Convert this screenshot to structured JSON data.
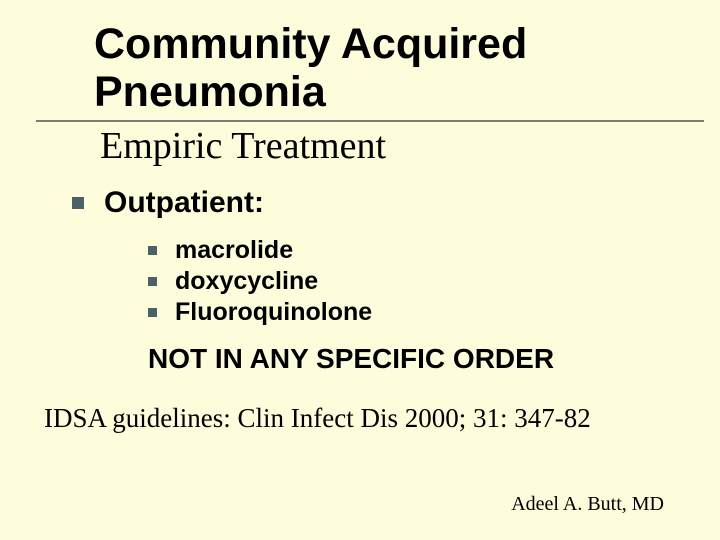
{
  "colors": {
    "background": "#fdfddb",
    "text": "#000000",
    "rule": "#7b7b7b",
    "bullet": "#4b6167"
  },
  "typography": {
    "title_family": "Verdana, Tahoma, Arial, sans-serif",
    "body_family": "Verdana, Tahoma, Arial, sans-serif",
    "serif_family": "'Times New Roman', Times, serif",
    "title_size_pt": 43,
    "subtitle_size_pt": 38,
    "section_size_pt": 30,
    "item_size_pt": 25,
    "emphasis_size_pt": 28,
    "citation_size_pt": 27,
    "author_size_pt": 20
  },
  "title": {
    "line1": "Community Acquired",
    "line2": "Pneumonia"
  },
  "subtitle": "Empiric Treatment",
  "section_heading": "Outpatient:",
  "items": [
    "macrolide",
    "doxycycline",
    "Fluoroquinolone"
  ],
  "emphasis": "NOT IN ANY SPECIFIC ORDER",
  "citation": "IDSA guidelines: Clin Infect Dis 2000; 31: 347-82",
  "author": "Adeel A. Butt, MD"
}
